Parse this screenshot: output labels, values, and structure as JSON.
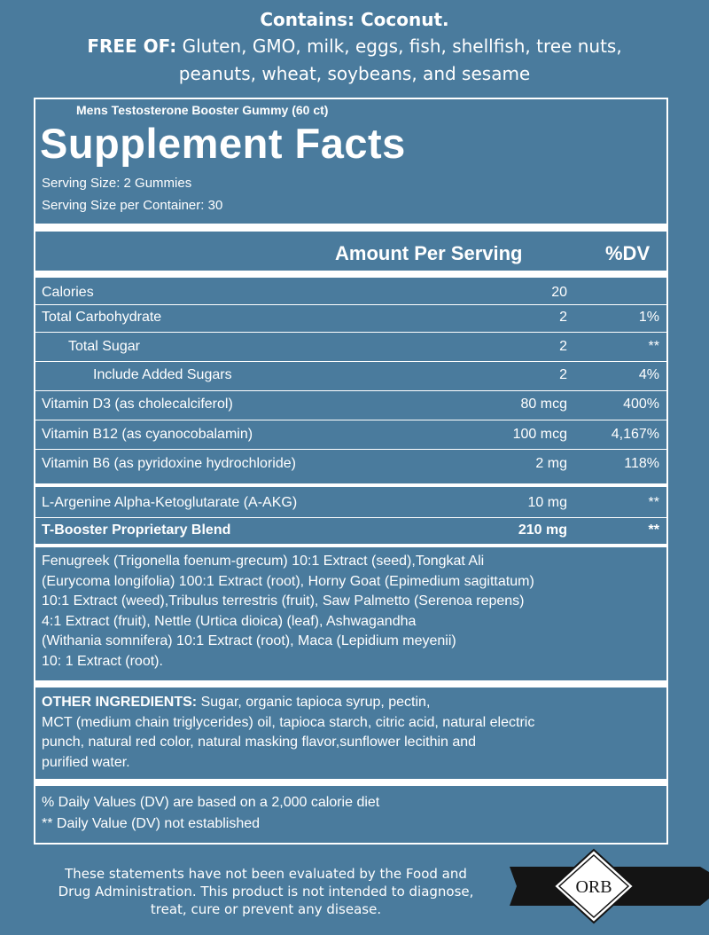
{
  "header": {
    "contains": "Contains: Coconut.",
    "free_of_label": "FREE OF:",
    "free_of_lines": [
      "Gluten, GMO, milk, eggs, fish, shellfish, tree nuts,",
      "peanuts, wheat, soybeans, and sesame"
    ]
  },
  "facts": {
    "product": "Mens Testosterone Booster Gummy (60 ct)",
    "title": "Supplement Facts",
    "serving_size": "Serving Size:  2 Gummies",
    "servings_per_container": "Serving Size per Container:  30",
    "columns": [
      "Amount Per Serving",
      "%DV"
    ],
    "rows": [
      {
        "name": "Calories",
        "amount": "20"
      },
      {
        "name": "Total Carbohydrate",
        "amount": "2",
        "dv": "1%"
      },
      {
        "name": "Total Sugar",
        "amount": "2",
        "dv": "**"
      },
      {
        "name": "Include Added Sugars",
        "amount": "2",
        "dv": "4%"
      },
      {
        "name": "Vitamin D3 (as cholecalciferol)",
        "amount": "80 mcg",
        "dv": "400%"
      },
      {
        "name": "Vitamin B12 (as cyanocobalamin)",
        "amount": "100 mcg",
        "dv": "4,167%"
      },
      {
        "name": "Vitamin B6 (as pyridoxine hydrochloride)",
        "amount": "2 mg",
        "dv": "118%"
      },
      {
        "name": "L-Argenine Alpha-Ketoglutarate (A-AKG)",
        "amount": "10 mg",
        "dv": "**"
      },
      {
        "name": "T-Booster Proprietary Blend",
        "amount": "210 mg",
        "dv": "**"
      }
    ],
    "blend_lines": [
      "Fenugreek (Trigonella foenum-grecum) 10:1 Extract (seed),Tongkat Ali",
      "(Eurycoma longifolia) 100:1 Extract (root), Horny Goat (Epimedium sagittatum)",
      "10:1 Extract (weed),Tribulus terrestris (fruit), Saw Palmetto (Serenoa repens)",
      "4:1 Extract (fruit), Nettle (Urtica dioica) (leaf), Ashwagandha",
      "(Withania somnifera) 10:1 Extract (root), Maca (Lepidium meyenii)",
      "10: 1 Extract (root)."
    ],
    "other_ingredients": {
      "label": "OTHER INGREDIENTS:",
      "lines": [
        "Sugar, organic tapioca syrup, pectin,",
        "MCT (medium chain triglycerides) oil, tapioca starch, citric acid, natural electric",
        "punch, natural red color, natural masking flavor,sunflower lecithin and",
        "purified water."
      ]
    },
    "notes": [
      "% Daily Values (DV) are based on a 2,000 calorie diet",
      "** Daily Value (DV) not established"
    ]
  },
  "footer": {
    "disclaimer_lines": [
      "These statements have not been evaluated by the Food and",
      "Drug Administration. This product is not intended to diagnose,",
      "treat, cure or prevent any disease."
    ],
    "logo": "ORB"
  }
}
